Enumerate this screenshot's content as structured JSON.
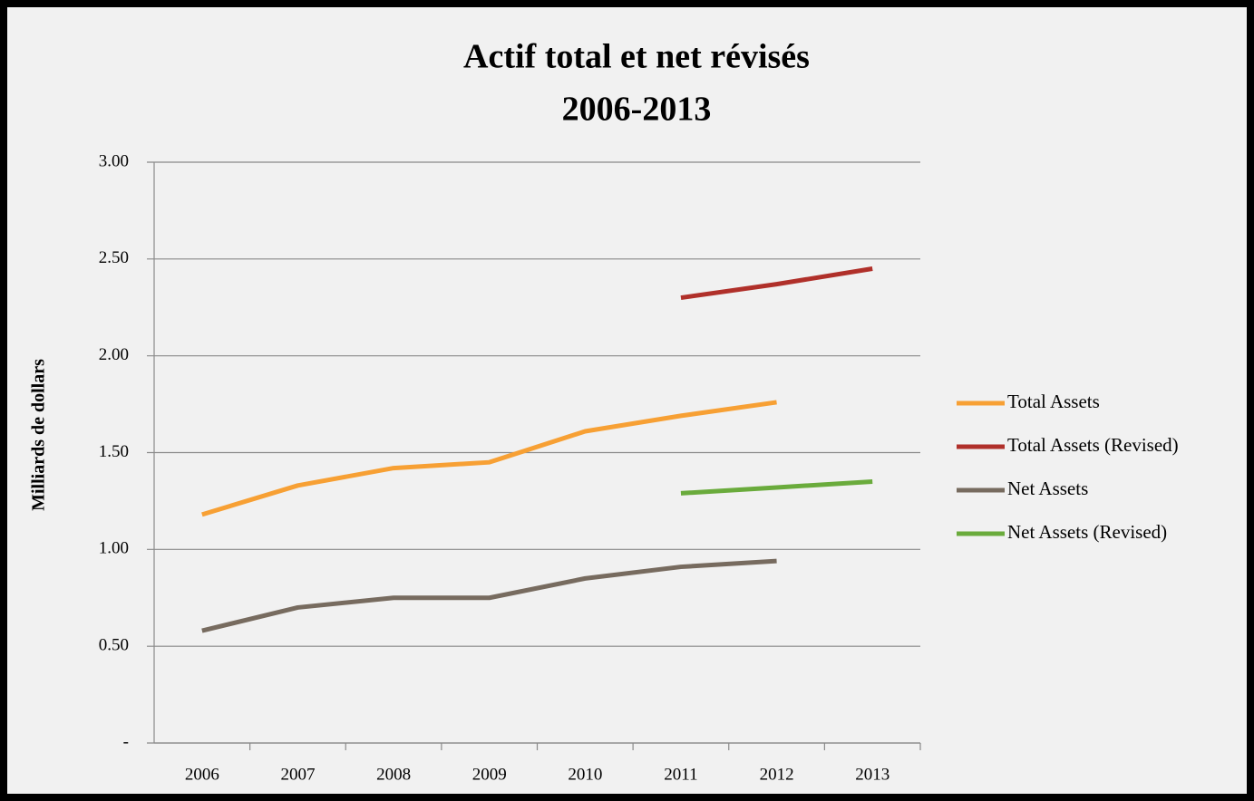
{
  "chart_data": {
    "type": "line",
    "title": [
      "Actif total et net révisés",
      "2006-2013"
    ],
    "y_label": "Milliards de dollars",
    "categories": [
      "2006",
      "2007",
      "2008",
      "2009",
      "2010",
      "2011",
      "2012",
      "2013"
    ],
    "series": [
      {
        "name": "Total Assets",
        "color": "#f7a034",
        "values": [
          1.18,
          1.33,
          1.42,
          1.45,
          1.61,
          1.69,
          1.76,
          null
        ]
      },
      {
        "name": "Total Assets (Revised)",
        "color": "#b0302a",
        "values": [
          null,
          null,
          null,
          null,
          null,
          2.3,
          2.37,
          2.45
        ]
      },
      {
        "name": "Net Assets",
        "color": "#776b5f",
        "values": [
          0.58,
          0.7,
          0.75,
          0.75,
          0.85,
          0.91,
          0.94,
          null
        ]
      },
      {
        "name": "Net Assets (Revised)",
        "color": "#6aab3c",
        "values": [
          null,
          null,
          null,
          null,
          null,
          1.29,
          1.32,
          1.35
        ]
      }
    ],
    "ylim": [
      0,
      3
    ],
    "yticks": [
      {
        "value": 0,
        "label": "-"
      },
      {
        "value": 0.5,
        "label": "0.50"
      },
      {
        "value": 1,
        "label": "1.00"
      },
      {
        "value": 1.5,
        "label": "1.50"
      },
      {
        "value": 2,
        "label": "2.00"
      },
      {
        "value": 2.5,
        "label": "2.50"
      },
      {
        "value": 3,
        "label": "3.00"
      }
    ],
    "grid": true,
    "legend": "right"
  }
}
